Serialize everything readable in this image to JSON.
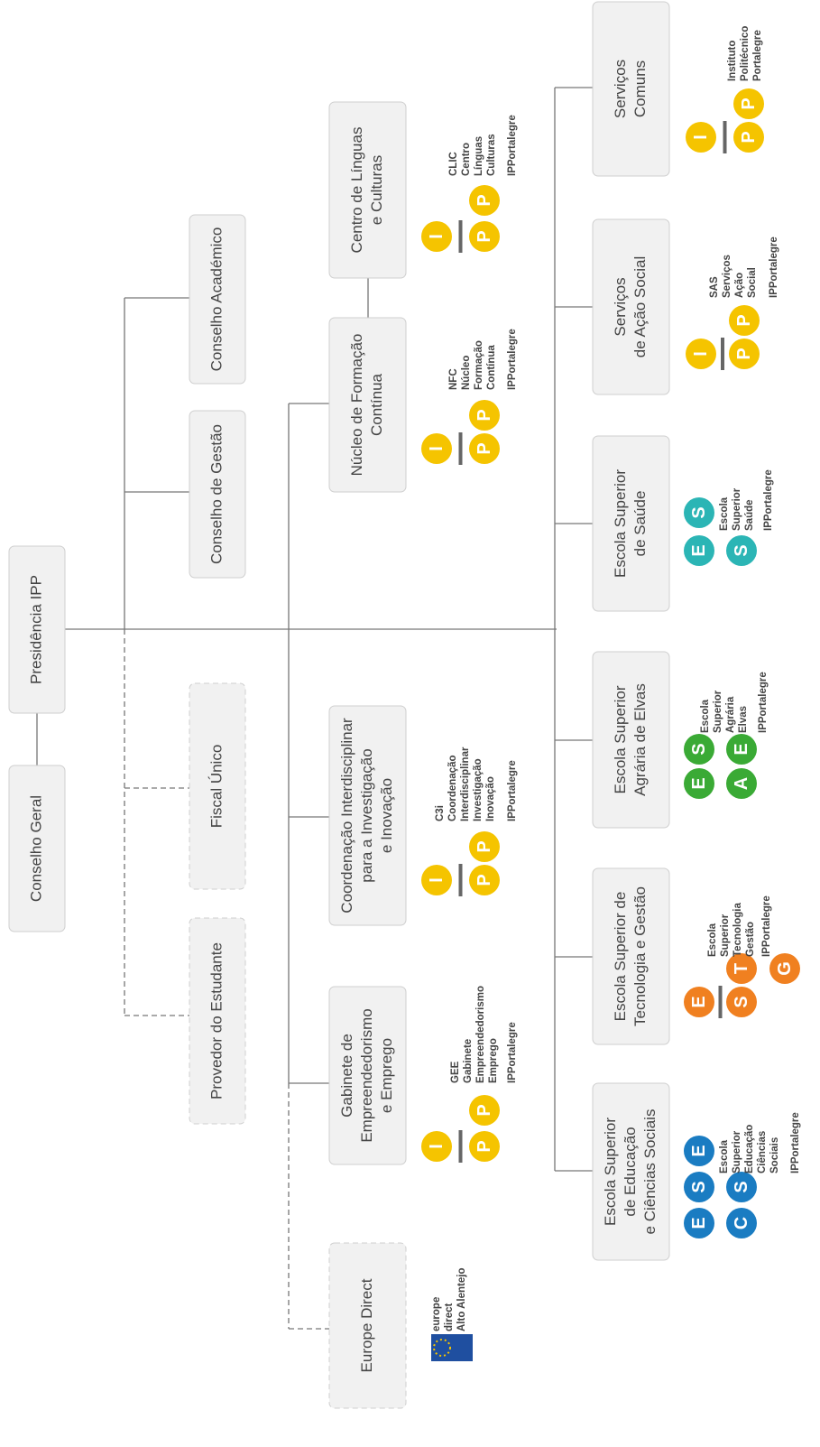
{
  "nodes": [
    {
      "lines": [
        "Conselho Geral"
      ]
    },
    {
      "lines": [
        "Presidência IPP"
      ]
    },
    {
      "lines": [
        "Conselho Académico"
      ]
    },
    {
      "lines": [
        "Conselho de Gestão"
      ]
    },
    {
      "lines": [
        "Fiscal Único"
      ]
    },
    {
      "lines": [
        "Provedor do Estudante"
      ]
    },
    {
      "lines": [
        "Centro de Línguas",
        "e Culturas"
      ]
    },
    {
      "lines": [
        "Núcleo de Formação",
        "Contínua"
      ]
    },
    {
      "lines": [
        "Coordenação Interdisciplinar",
        "para a Investigação",
        "e Inovação"
      ]
    },
    {
      "lines": [
        "Gabinete de",
        "Empreendedorismo",
        "e Emprego"
      ]
    },
    {
      "lines": [
        "Europe Direct"
      ]
    },
    {
      "lines": [
        "Serviços",
        "Comuns"
      ]
    },
    {
      "lines": [
        "Serviços",
        "de Ação Social"
      ]
    },
    {
      "lines": [
        "Escola Superior",
        "de Saúde"
      ]
    },
    {
      "lines": [
        "Escola Superior",
        "Agrária de Elvas"
      ]
    },
    {
      "lines": [
        "Escola Superior de",
        "Tecnologia e Gestão"
      ]
    },
    {
      "lines": [
        "Escola Superior",
        "de Educação",
        "e Ciências Sociais"
      ]
    }
  ],
  "logos": [
    {
      "color": "#f5c400",
      "circles": [
        "I",
        "P",
        "P"
      ],
      "lines": [
        "Instituto",
        "Politécnico",
        "Portalegre"
      ]
    },
    {
      "color": "#f5c400",
      "circles": [
        "I",
        "P",
        "P"
      ],
      "lines": [
        "SAS",
        "Serviços",
        "Ação",
        "Social",
        "IPPortalegre"
      ]
    },
    {
      "color": "#2bb5b5",
      "circles": [
        "E",
        "S",
        "S"
      ],
      "lines": [
        "Escola",
        "Superior",
        "Saúde",
        "IPPortalegre"
      ]
    },
    {
      "color": "#3aaa35",
      "circles": [
        "E",
        "S",
        "A",
        "E"
      ],
      "lines": [
        "Escola",
        "Superior",
        "Agrária",
        "Elvas",
        "IPPortalegre"
      ]
    },
    {
      "color": "#f08020",
      "circles": [
        "E",
        "S",
        "T",
        "G"
      ],
      "lines": [
        "Escola",
        "Superior",
        "Tecnologia",
        "Gestão",
        "IPPortalegre"
      ]
    },
    {
      "color": "#1a7cc2",
      "circles": [
        "E",
        "S",
        "E",
        "C",
        "S"
      ],
      "lines": [
        "Escola",
        "Superior",
        "Educação",
        "Ciências",
        "Sociais",
        "IPPortalegre"
      ]
    },
    {
      "color": "#f5c400",
      "circles": [
        "I",
        "P",
        "P"
      ],
      "lines": [
        "CLIC",
        "Centro",
        "Línguas",
        "Culturas",
        "IPPortalegre"
      ]
    },
    {
      "color": "#f5c400",
      "circles": [
        "I",
        "P",
        "P"
      ],
      "lines": [
        "NFC",
        "Núcleo",
        "Formação",
        "Contínua",
        "IPPortalegre"
      ]
    },
    {
      "color": "#f5c400",
      "circles": [
        "I",
        "P",
        "P"
      ],
      "lines": [
        "C3i",
        "Coordenação",
        "Interdisciplinar",
        "Investigação",
        "Inovação",
        "IPPortalegre"
      ]
    },
    {
      "color": "#f5c400",
      "circles": [
        "I",
        "P",
        "P"
      ],
      "lines": [
        "GEE",
        "Gabinete",
        "Empreendedorismo",
        "Emprego",
        "IPPortalegre"
      ]
    },
    {
      "color": "#1f4fa0",
      "circles": [],
      "lines": [
        "europe",
        "direct",
        "Alto Alentejo"
      ]
    }
  ]
}
